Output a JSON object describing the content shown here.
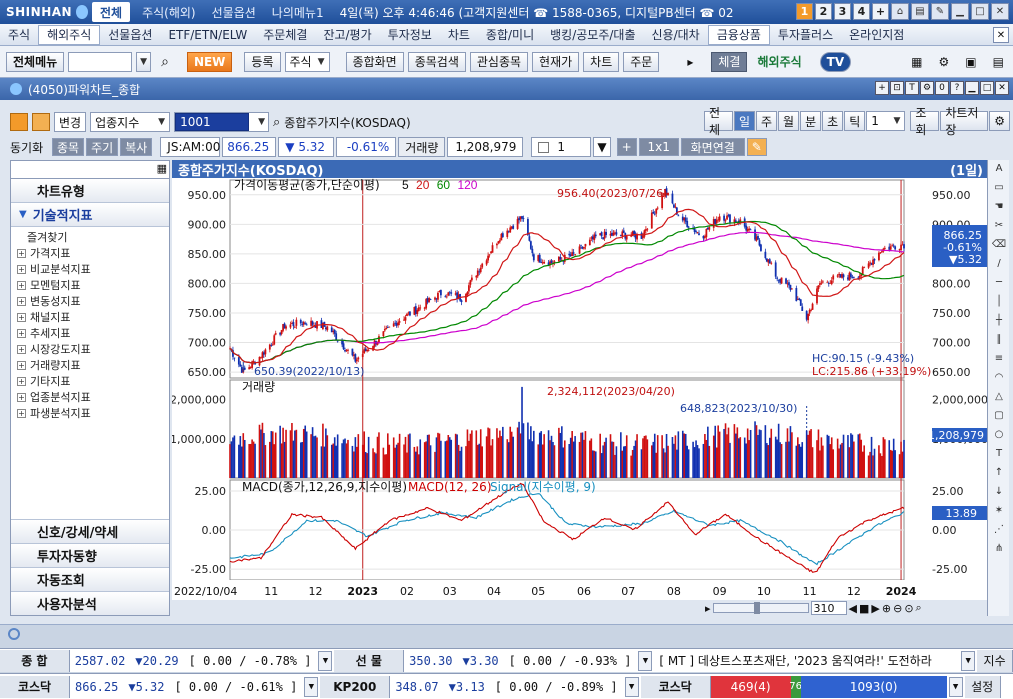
{
  "titlebar": {
    "brand": "SHINHAN",
    "tabs": [
      "전체",
      "주식(해외)",
      "선물옵션",
      "나의메뉴1"
    ],
    "clock": "4일(목) 오후 4:46:46 (고객지원센터 ☎ 1588-0365, 디지털PB센터 ☎ 02",
    "num_buttons": [
      "1",
      "2",
      "3",
      "4",
      "+"
    ]
  },
  "menubar": {
    "items": [
      "주식",
      "해외주식",
      "선물옵션",
      "ETF/ETN/ELW",
      "주문체결",
      "잔고/평가",
      "투자정보",
      "차트",
      "종합/미니",
      "뱅킹/공모주/대출",
      "신용/대차",
      "금융상품",
      "투자플러스",
      "온라인지점"
    ],
    "selected": "해외주식"
  },
  "toolbar": {
    "menu_label": "전체메뉴",
    "new_label": "NEW",
    "register_label": "등록",
    "type_select": "주식",
    "buttons": [
      "종합화면",
      "종목검색",
      "관심종목",
      "현재가",
      "차트",
      "주문"
    ],
    "exec_label": "체결",
    "foreign_label": "해외주식",
    "tv_label": "TV"
  },
  "window": {
    "title": "(4050)파워차트_종합"
  },
  "controls": {
    "change_label": "변경",
    "market_select": "업종지수",
    "code": "1001",
    "name": "종합주가지수(KOSDAQ)",
    "period_tabs": [
      "전체",
      "일",
      "주",
      "월",
      "분",
      "초",
      "틱"
    ],
    "period_selected": "일",
    "period_count": "1",
    "query_label": "조회",
    "save_label": "차트저장",
    "sync_label": "동기화",
    "tabs2": [
      "종목",
      "주기",
      "복사"
    ],
    "quote": {
      "symbol": "JS:AM:00",
      "price": "866.25",
      "change": "▼ 5.32",
      "rate": "-0.61%",
      "volume_label": "거래량",
      "volume": "1,208,979"
    },
    "count_value": "1",
    "layout_label": "1x1",
    "screen_link_label": "화면연결"
  },
  "leftpanel": {
    "chart_type_label": "차트유형",
    "indicators_label": "기술적지표",
    "tree": [
      "즐겨찾기",
      "가격지표",
      "비교분석지표",
      "모멘텀지표",
      "변동성지표",
      "채널지표",
      "추세지표",
      "시장강도지표",
      "거래량지표",
      "기타지표",
      "업종분석지표",
      "파생분석지표"
    ],
    "bottom": [
      "신호/강세/약세",
      "투자자동향",
      "자동조회",
      "사용자분석"
    ]
  },
  "chart_header": {
    "title": "종합주가지수(KOSDAQ)",
    "period": "(1일)"
  },
  "chart_data": [
    {
      "type": "line",
      "title": "가격이동평균(종가,단순이평)",
      "ma_periods": [
        "5",
        "20",
        "60",
        "120"
      ],
      "colors": {
        "ma5": "#cc0000",
        "ma20": "#d01616",
        "ma60": "#008800",
        "ma120": "#cc00cc",
        "up": "#d01010",
        "down": "#1030b0"
      },
      "ylim": [
        640,
        975
      ],
      "yticks": [
        "950.00",
        "900.00",
        "850.00",
        "800.00",
        "750.00",
        "700.00",
        "650.00"
      ],
      "x_start": "2022/10/04",
      "x_end": "2024/01/04",
      "xticks": [
        "2022/10/04",
        "11",
        "12",
        "2023",
        "02",
        "03",
        "04",
        "05",
        "06",
        "07",
        "08",
        "09",
        "10",
        "11",
        "12",
        "2024"
      ],
      "price_path": [
        [
          "2022-10-04",
          690
        ],
        [
          "2022-10-13",
          650.39
        ],
        [
          "2022-10-25",
          678
        ],
        [
          "2022-11-10",
          728
        ],
        [
          "2022-11-25",
          735
        ],
        [
          "2022-12-10",
          725
        ],
        [
          "2022-12-28",
          670
        ],
        [
          "2023-01-10",
          700
        ],
        [
          "2023-01-25",
          735
        ],
        [
          "2023-02-10",
          760
        ],
        [
          "2023-02-25",
          785
        ],
        [
          "2023-03-10",
          775
        ],
        [
          "2023-03-20",
          818
        ],
        [
          "2023-04-05",
          880
        ],
        [
          "2023-04-20",
          912
        ],
        [
          "2023-04-28",
          845
        ],
        [
          "2023-05-10",
          835
        ],
        [
          "2023-05-25",
          848
        ],
        [
          "2023-06-10",
          880
        ],
        [
          "2023-06-25",
          883
        ],
        [
          "2023-07-10",
          880
        ],
        [
          "2023-07-26",
          956.4
        ],
        [
          "2023-08-05",
          912
        ],
        [
          "2023-08-20",
          880
        ],
        [
          "2023-09-01",
          915
        ],
        [
          "2023-09-15",
          905
        ],
        [
          "2023-09-27",
          870
        ],
        [
          "2023-10-10",
          810
        ],
        [
          "2023-10-20",
          790
        ],
        [
          "2023-10-30",
          741
        ],
        [
          "2023-11-08",
          800
        ],
        [
          "2023-11-20",
          810
        ],
        [
          "2023-12-05",
          815
        ],
        [
          "2023-12-20",
          858
        ],
        [
          "2024-01-03",
          866.25
        ]
      ],
      "annotations": {
        "high": "956.40(2023/07/26)",
        "low": "650.39(2022/10/13)",
        "hc": "HC:90.15 (-9.43%)",
        "lc": "LC:215.86 (+33.19%)"
      },
      "last_value": "866.25",
      "last_rate": "-0.61%",
      "last_change": "▼5.32"
    },
    {
      "type": "bar",
      "title": "거래량",
      "yticks": [
        "2,000,000",
        "1,000,000"
      ],
      "ylim": [
        0,
        2500000
      ],
      "peak": "2,324,112(2023/04/20)",
      "marker": "648,823(2023/10/30)",
      "last_value": "1,208,979"
    },
    {
      "type": "line",
      "title": "MACD(종가,12,26,9,지수이평)",
      "series_labels": [
        "MACD(12, 26)",
        "Signal(지수이평, 9)"
      ],
      "colors": {
        "macd": "#cc0000",
        "signal": "#1890c0"
      },
      "ylim": [
        -32,
        32
      ],
      "yticks": [
        "25.00",
        "0.00",
        "-25.00"
      ],
      "macd_path": [
        [
          "2022-10-04",
          -20
        ],
        [
          "2022-10-25",
          -18
        ],
        [
          "2022-11-15",
          10
        ],
        [
          "2022-12-05",
          8
        ],
        [
          "2022-12-28",
          -12
        ],
        [
          "2023-01-20",
          6
        ],
        [
          "2023-02-15",
          14
        ],
        [
          "2023-03-10",
          6
        ],
        [
          "2023-04-05",
          22
        ],
        [
          "2023-04-20",
          30
        ],
        [
          "2023-05-05",
          5
        ],
        [
          "2023-05-25",
          -6
        ],
        [
          "2023-06-15",
          8
        ],
        [
          "2023-07-05",
          0
        ],
        [
          "2023-07-28",
          18
        ],
        [
          "2023-08-15",
          -3
        ],
        [
          "2023-09-05",
          10
        ],
        [
          "2023-09-28",
          -6
        ],
        [
          "2023-10-25",
          -22
        ],
        [
          "2023-11-05",
          -28
        ],
        [
          "2023-11-20",
          -5
        ],
        [
          "2023-12-10",
          6
        ],
        [
          "2024-01-03",
          13.89
        ]
      ],
      "signal_path": [
        [
          "2022-10-04",
          -18
        ],
        [
          "2022-10-30",
          -15
        ],
        [
          "2022-11-25",
          6
        ],
        [
          "2022-12-15",
          6
        ],
        [
          "2023-01-05",
          -4
        ],
        [
          "2023-01-30",
          6
        ],
        [
          "2023-02-25",
          11
        ],
        [
          "2023-03-20",
          8
        ],
        [
          "2023-04-15",
          20
        ],
        [
          "2023-05-01",
          24
        ],
        [
          "2023-05-20",
          4
        ],
        [
          "2023-06-10",
          2
        ],
        [
          "2023-07-10",
          4
        ],
        [
          "2023-08-01",
          12
        ],
        [
          "2023-08-25",
          3
        ],
        [
          "2023-09-15",
          6
        ],
        [
          "2023-10-10",
          -6
        ],
        [
          "2023-11-05",
          -22
        ],
        [
          "2023-11-25",
          -10
        ],
        [
          "2023-12-15",
          2
        ],
        [
          "2024-01-03",
          11
        ]
      ],
      "last_value": "13.89"
    }
  ],
  "scroll": {
    "count": "310"
  },
  "tickers": [
    {
      "name1": "종 합",
      "val1": "2587.02",
      "chg1": "▼20.29",
      "rate1": "[ 0.00  / -0.78% ]",
      "name2": "선 물",
      "val2": "350.30",
      "chg2": "▼3.30",
      "rate2": "[ 0.00  / -0.93% ]",
      "news": "[ MT ] 데상트스포츠재단, '2023 움직여라!' 도전하라",
      "btn": "지수"
    },
    {
      "name1": "코스닥",
      "val1": "866.25",
      "chg1": "▼5.32",
      "rate1": "[ 0.00  / -0.61% ]",
      "name2": "KP200",
      "val2": "348.07",
      "chg2": "▼3.13",
      "rate2": "[ 0.00  / -0.89% ]",
      "name3": "코스닥",
      "bar_left": "469(4)",
      "bar_mid": "76",
      "bar_right": "1093(0)",
      "btn": "설정"
    }
  ]
}
